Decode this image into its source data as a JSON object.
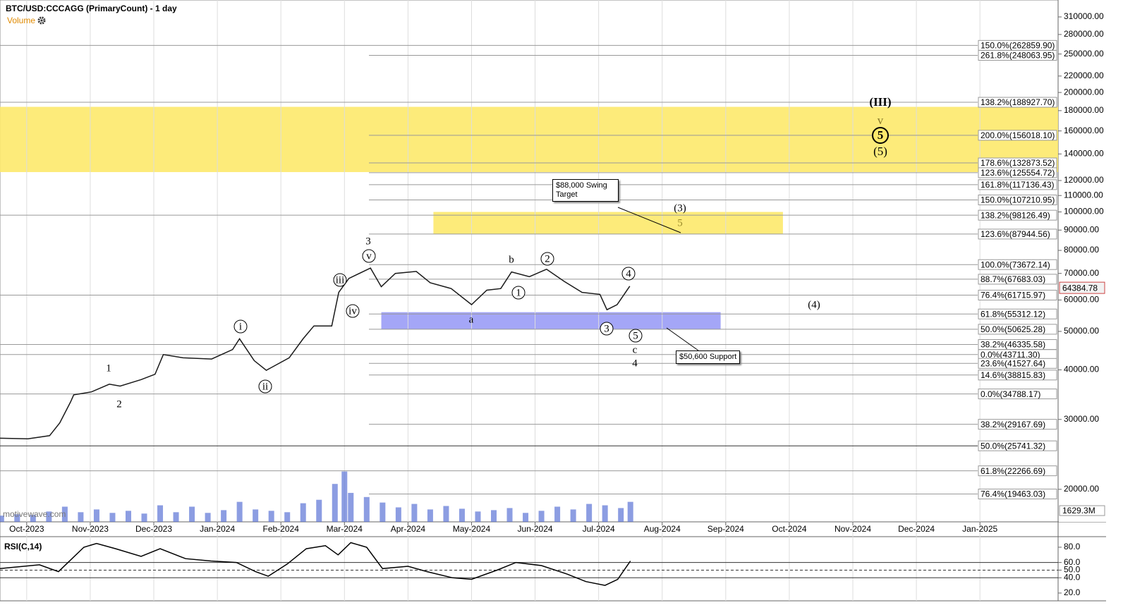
{
  "chart_data": [
    {
      "type": "line",
      "title": "BTC/USD:CCCAGG (PrimaryCount) - 1 day",
      "watermark": "motivewave.com",
      "log_scale": true,
      "color": "#1a1a1a",
      "x": [
        -0.42,
        0.02,
        0.36,
        0.52,
        0.69,
        0.74,
        1.02,
        1.3,
        1.47,
        1.8,
        2.02,
        2.15,
        2.46,
        2.91,
        3.24,
        3.35,
        3.58,
        3.77,
        4.13,
        4.35,
        4.52,
        4.8,
        4.91,
        5.07,
        5.41,
        5.58,
        5.8,
        6.13,
        6.35,
        6.68,
        7.0,
        7.24,
        7.46,
        7.63,
        7.91,
        8.18,
        8.46,
        8.74,
        9.02,
        9.13,
        9.29,
        9.49
      ],
      "values": [
        26900,
        26800,
        27300,
        29400,
        33200,
        34600,
        35200,
        36800,
        36400,
        37800,
        39000,
        43700,
        42900,
        42600,
        45000,
        47900,
        42200,
        39900,
        42900,
        47900,
        51600,
        51600,
        62700,
        68000,
        72200,
        64800,
        70000,
        70800,
        66300,
        64100,
        58400,
        63500,
        64100,
        70600,
        68700,
        71700,
        66800,
        62700,
        62000,
        56700,
        58400,
        65000
      ],
      "last_price": 64384.78,
      "xlim": [
        -0.42,
        16.23
      ],
      "xticks": [
        {
          "value": 0,
          "label": "Oct-2023"
        },
        {
          "value": 1,
          "label": "Nov-2023"
        },
        {
          "value": 2,
          "label": "Dec-2023"
        },
        {
          "value": 3,
          "label": "Jan-2024"
        },
        {
          "value": 4,
          "label": "Feb-2024"
        },
        {
          "value": 5,
          "label": "Mar-2024"
        },
        {
          "value": 6,
          "label": "Apr-2024"
        },
        {
          "value": 7,
          "label": "May-2024"
        },
        {
          "value": 8,
          "label": "Jun-2024"
        },
        {
          "value": 9,
          "label": "Jul-2024"
        },
        {
          "value": 10,
          "label": "Aug-2024"
        },
        {
          "value": 11,
          "label": "Sep-2024"
        },
        {
          "value": 12,
          "label": "Oct-2024"
        },
        {
          "value": 13,
          "label": "Nov-2024"
        },
        {
          "value": 14,
          "label": "Dec-2024"
        },
        {
          "value": 15,
          "label": "Jan-2025"
        }
      ],
      "ylim": [
        16560,
        342000
      ],
      "yticks": [
        {
          "value": 20000,
          "label": "20000.00"
        },
        {
          "value": 30000,
          "label": "30000.00"
        },
        {
          "value": 40000,
          "label": "40000.00"
        },
        {
          "value": 50000,
          "label": "50000.00"
        },
        {
          "value": 60000,
          "label": "60000.00"
        },
        {
          "value": 70000,
          "label": "70000.00"
        },
        {
          "value": 80000,
          "label": "80000.00"
        },
        {
          "value": 90000,
          "label": "90000.00"
        },
        {
          "value": 100000,
          "label": "100000.00"
        },
        {
          "value": 110000,
          "label": "110000.00"
        },
        {
          "value": 120000,
          "label": "120000.00"
        },
        {
          "value": 140000,
          "label": "140000.00"
        },
        {
          "value": 160000,
          "label": "160000.00"
        },
        {
          "value": 180000,
          "label": "180000.00"
        },
        {
          "value": 200000,
          "label": "200000.00"
        },
        {
          "value": 220000,
          "label": "220000.00"
        },
        {
          "value": 250000,
          "label": "250000.00"
        },
        {
          "value": 280000,
          "label": "280000.00"
        },
        {
          "value": 310000,
          "label": "310000.00"
        }
      ],
      "fib_levels": [
        {
          "value": 262859.9,
          "label": "150.0%(262859.90)"
        },
        {
          "value": 248063.95,
          "label": "261.8%(248063.95)"
        },
        {
          "value": 188927.7,
          "label": "138.2%(188927.70)"
        },
        {
          "value": 156018.1,
          "label": "200.0%(156018.10)"
        },
        {
          "value": 132873.52,
          "label": "178.6%(132873.52)"
        },
        {
          "value": 125554.72,
          "label": "123.6%(125554.72)"
        },
        {
          "value": 117136.43,
          "label": "161.8%(117136.43)"
        },
        {
          "value": 107210.95,
          "label": "150.0%(107210.95)"
        },
        {
          "value": 98126.49,
          "label": "138.2%(98126.49)"
        },
        {
          "value": 87944.56,
          "label": "123.6%(87944.56)"
        },
        {
          "value": 73672.14,
          "label": "100.0%(73672.14)"
        },
        {
          "value": 67683.03,
          "label": "88.7%(67683.03)"
        },
        {
          "value": 61715.97,
          "label": "76.4%(61715.97)"
        },
        {
          "value": 55312.12,
          "label": "61.8%(55312.12)"
        },
        {
          "value": 50625.28,
          "label": "50.0%(50625.28)"
        },
        {
          "value": 46335.58,
          "label": "38.2%(46335.58)"
        },
        {
          "value": 43711.3,
          "label": "0.0%(43711.30)"
        },
        {
          "value": 41527.64,
          "label": "23.6%(41527.64)"
        },
        {
          "value": 38815.83,
          "label": "14.6%(38815.83)"
        },
        {
          "value": 34788.17,
          "label": "0.0%(34788.17)"
        },
        {
          "value": 29167.69,
          "label": "38.2%(29167.69)"
        },
        {
          "value": 25741.32,
          "label": "50.0%(25741.32)"
        },
        {
          "value": 22266.69,
          "label": "61.8%(22266.69)"
        },
        {
          "value": 19463.03,
          "label": "76.4%(19463.03)"
        }
      ],
      "zones": [
        {
          "low": 126000,
          "high": 184000,
          "color": "#fde96b"
        },
        {
          "low": 88000,
          "high": 100000,
          "x": [
            6.4,
            11.9
          ],
          "color": "#fde96b"
        },
        {
          "low": 50600,
          "high": 55900,
          "x": [
            5.58,
            10.92
          ],
          "color": "#9a9cf6"
        }
      ],
      "annotations": [
        "1",
        "2",
        "i",
        "ii",
        "iii",
        "iv",
        "v",
        "3",
        "a",
        "b",
        "1",
        "2",
        "3",
        "4",
        "5",
        "c",
        "4",
        "(3)",
        "5",
        "(4)",
        "(III)",
        "v",
        "5",
        "(5)"
      ],
      "callouts": [
        "$88,000 Swing Target",
        "$50,600 Support"
      ]
    },
    {
      "type": "bar",
      "title": "Volume",
      "color": "#5b74d6",
      "x": [
        -0.4,
        -0.15,
        0.1,
        0.35,
        0.6,
        0.85,
        1.1,
        1.35,
        1.6,
        1.85,
        2.1,
        2.35,
        2.6,
        2.85,
        3.1,
        3.35,
        3.6,
        3.85,
        4.1,
        4.35,
        4.6,
        4.85,
        5.0,
        5.1,
        5.35,
        5.6,
        5.85,
        6.1,
        6.35,
        6.6,
        6.85,
        7.1,
        7.35,
        7.6,
        7.85,
        8.1,
        8.35,
        8.6,
        8.85,
        9.1,
        9.35,
        9.5
      ],
      "values": [
        900,
        1100,
        1000,
        1500,
        2200,
        1400,
        1800,
        1300,
        1600,
        1200,
        2400,
        1400,
        2200,
        1300,
        1700,
        2900,
        1800,
        1600,
        1400,
        2700,
        3200,
        5500,
        7300,
        4200,
        3600,
        2800,
        2100,
        2600,
        1800,
        2300,
        1900,
        1500,
        1700,
        2000,
        1300,
        1600,
        2200,
        1800,
        2600,
        2400,
        2000,
        2900
      ],
      "xlim": [
        -0.42,
        16.23
      ],
      "ylim": [
        0,
        9000
      ],
      "yticks": [
        {
          "value": 1629.3,
          "label": "1629.3M"
        }
      ]
    },
    {
      "type": "line",
      "title": "RSI(C,14)",
      "color": "#000000",
      "x": [
        -0.42,
        0.2,
        0.5,
        0.9,
        1.1,
        1.4,
        1.8,
        2.1,
        2.5,
        2.9,
        3.3,
        3.6,
        3.8,
        4.1,
        4.4,
        4.7,
        4.9,
        5.1,
        5.35,
        5.6,
        6.0,
        6.3,
        6.7,
        7.0,
        7.4,
        7.7,
        8.1,
        8.5,
        8.8,
        9.1,
        9.3,
        9.5
      ],
      "values": [
        52,
        57,
        48,
        80,
        85,
        78,
        68,
        78,
        65,
        62,
        60,
        48,
        42,
        58,
        78,
        82,
        70,
        86,
        80,
        52,
        55,
        48,
        40,
        38,
        50,
        60,
        56,
        45,
        35,
        30,
        38,
        62
      ],
      "xlim": [
        -0.42,
        16.23
      ],
      "ylim": [
        9.8,
        92.9
      ],
      "yticks": [
        {
          "value": 20,
          "label": "20.0"
        },
        {
          "value": 40,
          "label": "40.0"
        },
        {
          "value": 50,
          "label": "50.0"
        },
        {
          "value": 60,
          "label": "60.0"
        },
        {
          "value": 80,
          "label": "80.0"
        }
      ]
    }
  ]
}
